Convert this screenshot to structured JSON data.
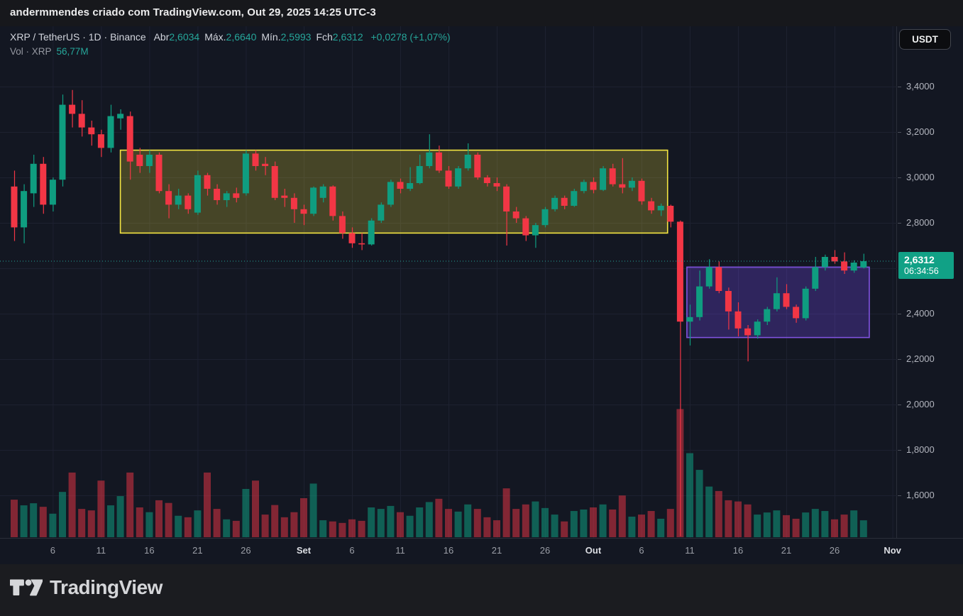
{
  "attribution": {
    "text": "andermmendes criado com TradingView.com, Out 29, 2025 14:25 UTC-3"
  },
  "controls": {
    "currency_button": "USDT"
  },
  "legend": {
    "title": "XRP / TetherUS · 1D · Binance",
    "ohlc": [
      {
        "label": "Abr",
        "value": "2,6034"
      },
      {
        "label": "Máx.",
        "value": "2,6640"
      },
      {
        "label": "Mín.",
        "value": "2,5993"
      },
      {
        "label": "Fch",
        "value": "2,6312"
      }
    ],
    "change": "+0,0278 (+1,07%)",
    "vol_label": "Vol · XRP",
    "vol_value": "56,77M"
  },
  "badge": {
    "price": "2,6312",
    "countdown": "06:34:56"
  },
  "footer": {
    "brand": "TradingView"
  },
  "colors": {
    "background": "#131722",
    "grid": "#1d2130",
    "up": "#0f9d80",
    "down": "#f23645",
    "vol_up": "rgba(15,157,128,0.55)",
    "vol_down": "rgba(242,54,69,0.5)",
    "text_teal": "#26a69a",
    "badge_bg": "#11a186",
    "box_yellow_stroke": "#f5e642",
    "box_yellow_fill": "rgba(255,235,59,0.22)",
    "box_purple_stroke": "#8053e0",
    "box_purple_fill": "rgba(124,77,255,0.27)"
  },
  "chart_data": {
    "type": "candlestick",
    "symbol": "XRP/USDT",
    "interval": "1D",
    "exchange": "Binance",
    "current_price": 2.6312,
    "price_line": {
      "price": 2.6312,
      "style": "dotted-teal"
    },
    "y_axis": {
      "min": 1.42,
      "max": 3.42,
      "grid_step": 0.2,
      "labels": [
        [
          "3,4000",
          3.4
        ],
        [
          "3,2000",
          3.2
        ],
        [
          "3,0000",
          3.0
        ],
        [
          "2,8000",
          2.8
        ],
        [
          "2,4000",
          2.4
        ],
        [
          "2,2000",
          2.2
        ],
        [
          "2,0000",
          2.0
        ],
        [
          "1,8000",
          1.8
        ],
        [
          "1,6000",
          1.6
        ]
      ]
    },
    "x_axis": {
      "labels": [
        [
          "6",
          4,
          0
        ],
        [
          "11",
          9,
          0
        ],
        [
          "16",
          14,
          0
        ],
        [
          "21",
          19,
          0
        ],
        [
          "26",
          24,
          0
        ],
        [
          "Set",
          30,
          1
        ],
        [
          "6",
          35,
          0
        ],
        [
          "11",
          40,
          0
        ],
        [
          "16",
          45,
          0
        ],
        [
          "21",
          50,
          0
        ],
        [
          "26",
          55,
          0
        ],
        [
          "Out",
          60,
          1
        ],
        [
          "6",
          65,
          0
        ],
        [
          "11",
          70,
          0
        ],
        [
          "16",
          75,
          0
        ],
        [
          "21",
          80,
          0
        ],
        [
          "26",
          85,
          0
        ],
        [
          "Nov",
          91,
          1
        ]
      ],
      "grid_days": [
        4,
        9,
        14,
        19,
        24,
        30,
        35,
        40,
        45,
        50,
        55,
        60,
        65,
        70,
        75,
        80,
        85,
        91
      ]
    },
    "boxes": [
      {
        "name": "consolidation-range",
        "day_from": 11,
        "day_to": 67.7,
        "top": 3.12,
        "bottom": 2.755,
        "color": "yellow"
      },
      {
        "name": "post-crash-range",
        "day_from": 69.7,
        "day_to": 88.6,
        "top": 2.605,
        "bottom": 2.295,
        "color": "purple"
      }
    ],
    "candles_fields": [
      "open",
      "high",
      "low",
      "close",
      "volume_m"
    ],
    "candles": [
      [
        2.96,
        3.03,
        2.72,
        2.78,
        126
      ],
      [
        2.78,
        2.97,
        2.71,
        2.94,
        107
      ],
      [
        2.93,
        3.1,
        2.87,
        3.06,
        114
      ],
      [
        3.06,
        3.09,
        2.84,
        2.88,
        102
      ],
      [
        2.88,
        3.0,
        2.85,
        2.99,
        79
      ],
      [
        2.99,
        3.365,
        2.96,
        3.32,
        152
      ],
      [
        3.32,
        3.385,
        3.22,
        3.28,
        217
      ],
      [
        3.28,
        3.34,
        3.18,
        3.22,
        95
      ],
      [
        3.22,
        3.25,
        3.14,
        3.19,
        90
      ],
      [
        3.19,
        3.21,
        3.09,
        3.13,
        190
      ],
      [
        3.13,
        3.32,
        3.11,
        3.27,
        107
      ],
      [
        3.26,
        3.3,
        3.21,
        3.28,
        138
      ],
      [
        3.27,
        3.29,
        2.99,
        3.07,
        217
      ],
      [
        3.1,
        3.13,
        3.02,
        3.05,
        100
      ],
      [
        3.05,
        3.12,
        3.02,
        3.1,
        84
      ],
      [
        3.1,
        3.11,
        2.93,
        2.94,
        124
      ],
      [
        2.94,
        2.97,
        2.82,
        2.88,
        115
      ],
      [
        2.88,
        2.95,
        2.86,
        2.92,
        72
      ],
      [
        2.92,
        2.93,
        2.84,
        2.86,
        67
      ],
      [
        2.845,
        3.03,
        2.835,
        3.01,
        90
      ],
      [
        3.01,
        3.02,
        2.92,
        2.95,
        217
      ],
      [
        2.95,
        2.97,
        2.88,
        2.9,
        95
      ],
      [
        2.9,
        2.94,
        2.87,
        2.93,
        60
      ],
      [
        2.93,
        2.955,
        2.89,
        2.91,
        55
      ],
      [
        2.93,
        3.12,
        2.92,
        3.105,
        162
      ],
      [
        3.105,
        3.12,
        3.03,
        3.05,
        190
      ],
      [
        3.06,
        3.09,
        3.01,
        3.05,
        76
      ],
      [
        3.05,
        3.07,
        2.9,
        2.91,
        108
      ],
      [
        2.92,
        2.95,
        2.87,
        2.91,
        67
      ],
      [
        2.91,
        2.93,
        2.8,
        2.86,
        84
      ],
      [
        2.86,
        2.88,
        2.79,
        2.84,
        131
      ],
      [
        2.84,
        2.96,
        2.83,
        2.955,
        180
      ],
      [
        2.91,
        2.97,
        2.89,
        2.96,
        57
      ],
      [
        2.96,
        2.965,
        2.81,
        2.83,
        53
      ],
      [
        2.83,
        2.85,
        2.73,
        2.755,
        48
      ],
      [
        2.755,
        2.78,
        2.69,
        2.71,
        60
      ],
      [
        2.71,
        2.755,
        2.68,
        2.705,
        55
      ],
      [
        2.705,
        2.82,
        2.7,
        2.81,
        100
      ],
      [
        2.81,
        2.89,
        2.8,
        2.88,
        95
      ],
      [
        2.88,
        2.99,
        2.87,
        2.98,
        105
      ],
      [
        2.98,
        2.995,
        2.93,
        2.95,
        84
      ],
      [
        2.95,
        3.045,
        2.94,
        2.975,
        72
      ],
      [
        2.975,
        3.1,
        2.97,
        3.05,
        100
      ],
      [
        3.05,
        3.19,
        3.04,
        3.11,
        118
      ],
      [
        3.11,
        3.14,
        3.02,
        3.03,
        129
      ],
      [
        3.03,
        3.05,
        2.95,
        2.96,
        95
      ],
      [
        2.96,
        3.05,
        2.95,
        3.04,
        86
      ],
      [
        3.04,
        3.15,
        3.03,
        3.1,
        110
      ],
      [
        3.1,
        3.11,
        2.99,
        3.0,
        95
      ],
      [
        3.0,
        3.01,
        2.96,
        2.975,
        67
      ],
      [
        2.975,
        3.0,
        2.94,
        2.96,
        57
      ],
      [
        2.96,
        2.97,
        2.7,
        2.85,
        164
      ],
      [
        2.85,
        2.87,
        2.8,
        2.82,
        95
      ],
      [
        2.82,
        2.83,
        2.72,
        2.745,
        110
      ],
      [
        2.745,
        2.8,
        2.69,
        2.79,
        120
      ],
      [
        2.79,
        2.87,
        2.78,
        2.86,
        98
      ],
      [
        2.86,
        2.92,
        2.85,
        2.91,
        76
      ],
      [
        2.91,
        2.92,
        2.86,
        2.875,
        53
      ],
      [
        2.875,
        2.95,
        2.87,
        2.94,
        88
      ],
      [
        2.94,
        2.99,
        2.93,
        2.98,
        93
      ],
      [
        2.98,
        3.0,
        2.93,
        2.945,
        100
      ],
      [
        2.945,
        3.05,
        2.94,
        3.04,
        110
      ],
      [
        3.04,
        3.06,
        2.96,
        2.97,
        93
      ],
      [
        2.97,
        3.085,
        2.93,
        2.955,
        140
      ],
      [
        2.955,
        3.0,
        2.94,
        2.985,
        69
      ],
      [
        2.985,
        2.995,
        2.88,
        2.895,
        76
      ],
      [
        2.895,
        2.91,
        2.84,
        2.855,
        88
      ],
      [
        2.855,
        2.885,
        2.83,
        2.875,
        62
      ],
      [
        2.875,
        2.88,
        2.78,
        2.805,
        95
      ],
      [
        2.805,
        2.81,
        1.42,
        2.365,
        430
      ],
      [
        2.365,
        2.44,
        2.26,
        2.385,
        282
      ],
      [
        2.385,
        2.59,
        2.37,
        2.52,
        226
      ],
      [
        2.52,
        2.64,
        2.51,
        2.605,
        170
      ],
      [
        2.605,
        2.63,
        2.49,
        2.5,
        155
      ],
      [
        2.5,
        2.515,
        2.33,
        2.41,
        124
      ],
      [
        2.41,
        2.45,
        2.3,
        2.335,
        120
      ],
      [
        2.335,
        2.35,
        2.19,
        2.305,
        110
      ],
      [
        2.305,
        2.375,
        2.29,
        2.365,
        76
      ],
      [
        2.365,
        2.43,
        2.35,
        2.42,
        83
      ],
      [
        2.42,
        2.56,
        2.41,
        2.49,
        90
      ],
      [
        2.49,
        2.53,
        2.42,
        2.43,
        74
      ],
      [
        2.43,
        2.44,
        2.36,
        2.38,
        62
      ],
      [
        2.38,
        2.52,
        2.37,
        2.51,
        83
      ],
      [
        2.51,
        2.65,
        2.5,
        2.605,
        95
      ],
      [
        2.605,
        2.66,
        2.59,
        2.65,
        88
      ],
      [
        2.65,
        2.68,
        2.62,
        2.63,
        60
      ],
      [
        2.63,
        2.67,
        2.575,
        2.59,
        76
      ],
      [
        2.59,
        2.635,
        2.58,
        2.625,
        90
      ],
      [
        2.6034,
        2.664,
        2.5993,
        2.6312,
        56.77
      ]
    ]
  }
}
